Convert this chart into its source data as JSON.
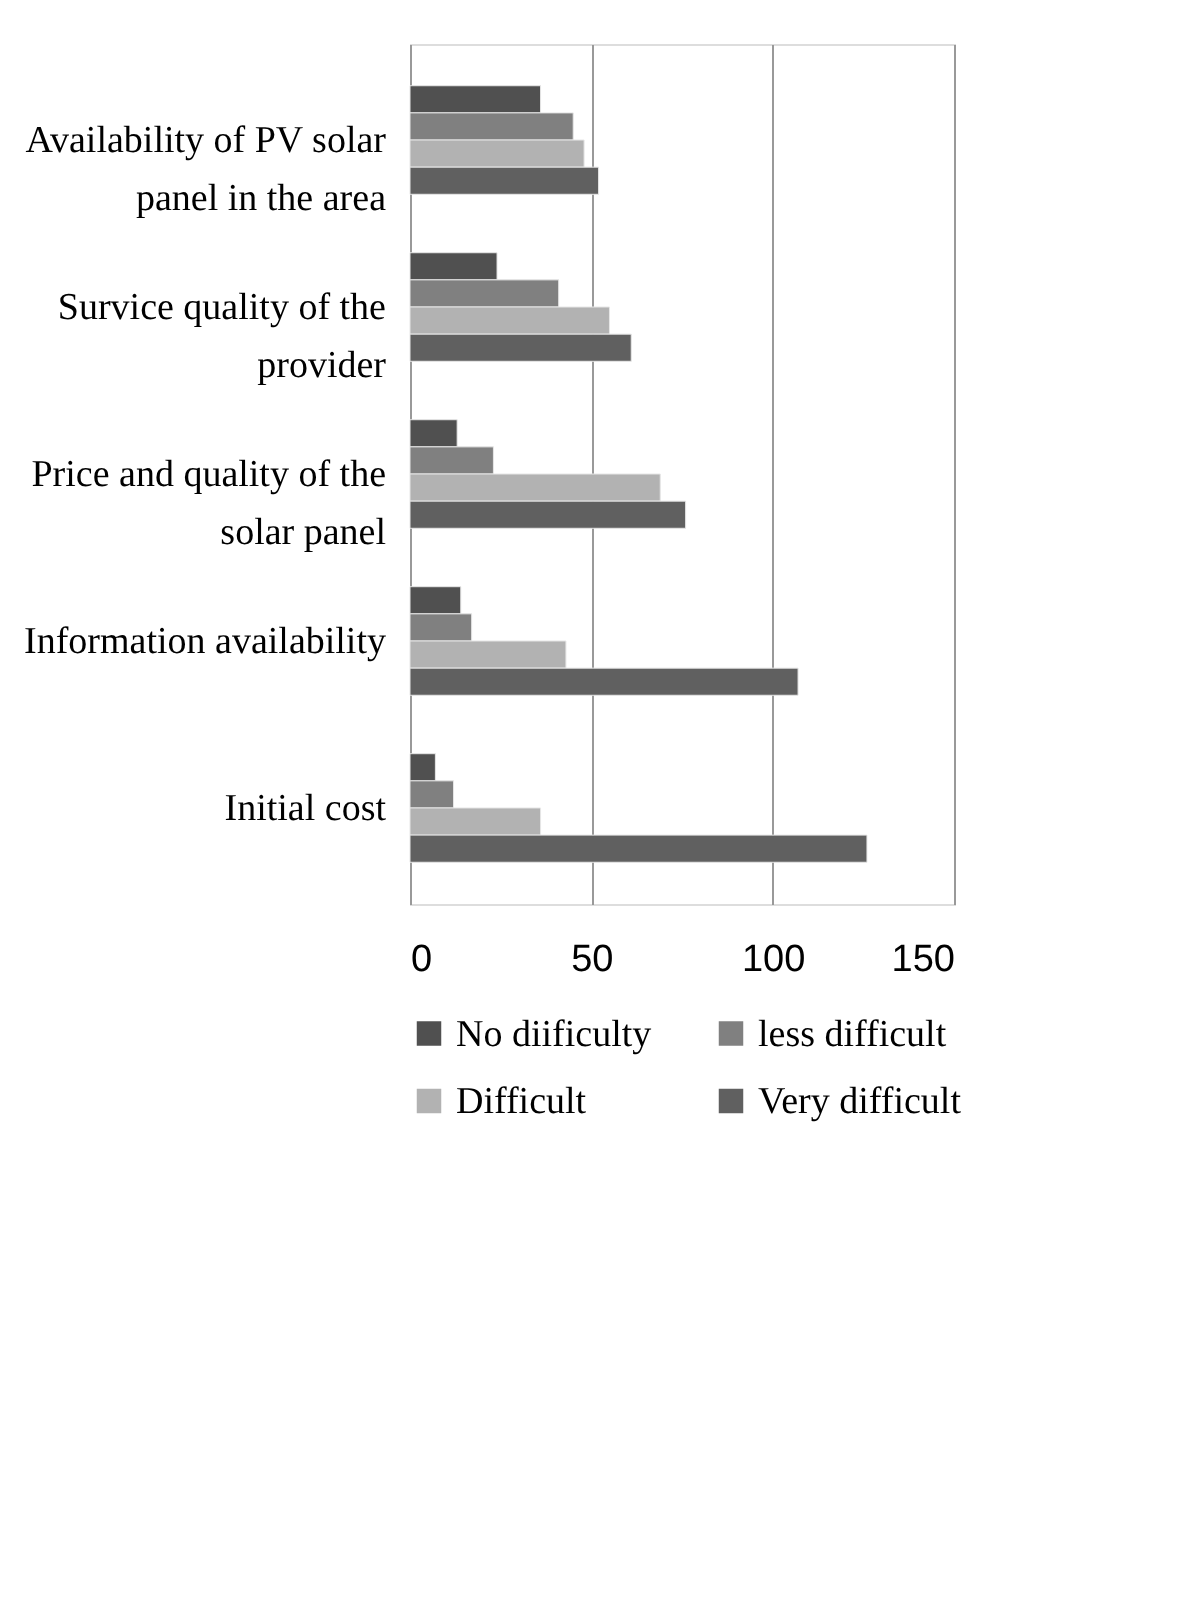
{
  "chart_data": {
    "type": "bar",
    "orientation": "horizontal",
    "categories": [
      "Availability of PV solar panel in the area",
      "Survice quality of the provider",
      "Price and quality of the solar panel",
      "Information availability",
      "Initial cost"
    ],
    "series": [
      {
        "name": "No diificulty",
        "color": "#505050",
        "values": [
          36,
          24,
          13,
          14,
          7
        ]
      },
      {
        "name": "less difficult",
        "color": "#808080",
        "values": [
          45,
          41,
          23,
          17,
          12
        ]
      },
      {
        "name": "Difficult",
        "color": "#b2b2b2",
        "values": [
          48,
          55,
          69,
          43,
          36
        ]
      },
      {
        "name": "Very difficult",
        "color": "#606060",
        "values": [
          52,
          61,
          76,
          107,
          126
        ]
      }
    ],
    "xlim": [
      0,
      150
    ],
    "xticks": [
      0,
      50,
      100,
      150
    ],
    "grid": "x",
    "legend": "bottom"
  }
}
